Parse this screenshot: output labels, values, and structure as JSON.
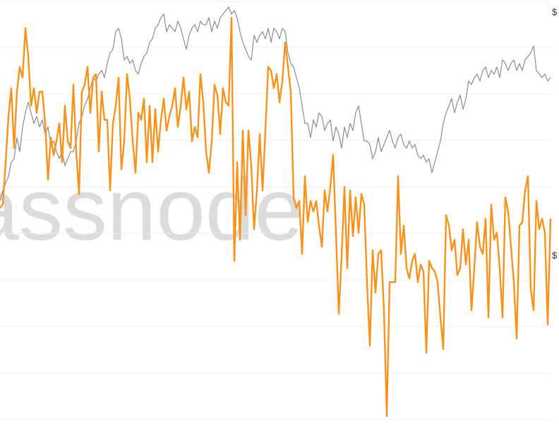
{
  "chart_data": {
    "type": "line",
    "watermark": "glassnode",
    "grid": true,
    "xlim": [
      0,
      780
    ],
    "ylim": [
      0,
      593
    ],
    "yticks": [
      0,
      66,
      132,
      198,
      264,
      330,
      396,
      462,
      528,
      593
    ],
    "y2lim": [
      0,
      593
    ],
    "y2ticks": [
      {
        "value": 577,
        "label": "$"
      },
      {
        "value": 232,
        "label": "$"
      }
    ],
    "x": [
      0,
      4,
      8,
      12,
      16,
      20,
      24,
      28,
      32,
      36,
      40,
      44,
      48,
      52,
      56,
      60,
      64,
      68,
      72,
      76,
      80,
      84,
      88,
      92,
      96,
      100,
      104,
      108,
      112,
      116,
      120,
      124,
      128,
      132,
      136,
      140,
      144,
      148,
      152,
      156,
      160,
      164,
      168,
      172,
      176,
      180,
      184,
      188,
      192,
      196,
      200,
      204,
      208,
      212,
      216,
      220,
      224,
      228,
      232,
      236,
      240,
      244,
      248,
      252,
      256,
      260,
      264,
      268,
      272,
      276,
      280,
      284,
      288,
      292,
      296,
      300,
      304,
      308,
      312,
      316,
      320,
      324,
      328,
      332,
      336,
      340,
      344,
      348,
      352,
      356,
      360,
      364,
      368,
      372,
      376,
      380,
      384,
      388,
      392,
      396,
      400,
      404,
      408,
      412,
      416,
      420,
      424,
      428,
      432,
      436,
      440,
      444,
      448,
      452,
      456,
      460,
      464,
      468,
      472,
      476,
      480,
      484,
      488,
      492,
      496,
      500,
      504,
      508,
      512,
      516,
      520,
      524,
      528,
      532,
      536,
      540,
      544,
      548,
      552,
      556,
      560,
      564,
      568,
      572,
      576,
      580,
      584,
      588,
      592,
      596,
      600,
      604,
      608,
      612,
      616,
      620,
      624,
      628,
      632,
      636,
      640,
      644,
      648,
      652,
      656,
      660,
      664,
      668,
      672,
      676,
      680,
      684,
      688,
      692,
      696,
      700,
      704,
      708,
      712,
      716,
      720,
      724,
      728,
      732,
      736,
      740,
      744,
      748,
      752,
      756,
      760,
      764,
      768,
      772,
      776,
      780
    ],
    "series": [
      {
        "color": "#8c8c8c",
        "axis": "y2",
        "values": [
          310,
          325,
          335,
          345,
          365,
          370,
          400,
          380,
          415,
          435,
          450,
          435,
          420,
          430,
          415,
          425,
          405,
          415,
          390,
          395,
          380,
          370,
          380,
          360,
          370,
          380,
          380,
          395,
          420,
          430,
          445,
          455,
          470,
          485,
          480,
          490,
          495,
          485,
          505,
          520,
          525,
          550,
          555,
          540,
          510,
          515,
          505,
          510,
          495,
          490,
          505,
          515,
          520,
          535,
          540,
          555,
          560,
          570,
          575,
          550,
          560,
          555,
          550,
          565,
          555,
          540,
          525,
          545,
          555,
          560,
          550,
          565,
          560,
          560,
          570,
          550,
          565,
          555,
          570,
          575,
          580,
          585,
          575,
          580,
          570,
          550,
          535,
          525,
          515,
          510,
          545,
          535,
          545,
          550,
          540,
          555,
          535,
          555,
          550,
          540,
          555,
          550,
          520,
          505,
          500,
          485,
          470,
          445,
          420,
          420,
          400,
          425,
          415,
          435,
          430,
          410,
          420,
          425,
          395,
          415,
          405,
          385,
          415,
          400,
          420,
          410,
          435,
          445,
          420,
          395,
          395,
          390,
          370,
          380,
          400,
          380,
          390,
          400,
          410,
          395,
          385,
          400,
          405,
          390,
          385,
          395,
          385,
          390,
          375,
          370,
          375,
          365,
          370,
          350,
          365,
          380,
          395,
          420,
          435,
          445,
          455,
          435,
          450,
          460,
          440,
          455,
          480,
          475,
          485,
          490,
          480,
          495,
          500,
          485,
          495,
          490,
          500,
          485,
          510,
          505,
          495,
          505,
          510,
          495,
          505,
          495,
          510,
          515,
          520,
          530,
          495,
          490,
          485,
          490,
          480,
          485
        ]
      },
      {
        "color": "#f7931a",
        "values": [
          300,
          305,
          365,
          430,
          470,
          385,
          465,
          500,
          485,
          555,
          515,
          445,
          470,
          435,
          465,
          465,
          420,
          340,
          400,
          375,
          395,
          420,
          365,
          445,
          395,
          385,
          475,
          380,
          320,
          465,
          475,
          500,
          435,
          485,
          490,
          380,
          465,
          425,
          425,
          325,
          420,
          445,
          485,
          355,
          395,
          490,
          455,
          395,
          350,
          435,
          425,
          455,
          365,
          445,
          365,
          440,
          380,
          425,
          455,
          410,
          430,
          445,
          470,
          415,
          445,
          485,
          440,
          465,
          395,
          415,
          400,
          490,
          450,
          380,
          350,
          395,
          475,
          460,
          405,
          470,
          450,
          445,
          570,
          225,
          365,
          255,
          410,
          290,
          410,
          360,
          270,
          325,
          405,
          325,
          410,
          500,
          495,
          470,
          490,
          450,
          480,
          535,
          500,
          465,
          315,
          300,
          310,
          235,
          345,
          280,
          310,
          295,
          310,
          275,
          245,
          325,
          295,
          330,
          375,
          265,
          150,
          230,
          330,
          215,
          325,
          260,
          315,
          265,
          320,
          305,
          195,
          105,
          240,
          180,
          235,
          240,
          155,
          5,
          195,
          195,
          195,
          345,
          235,
          275,
          215,
          200,
          225,
          235,
          195,
          220,
          210,
          95,
          225,
          215,
          210,
          195,
          145,
          100,
          290,
          275,
          240,
          255,
          205,
          215,
          270,
          220,
          255,
          155,
          215,
          280,
          245,
          235,
          285,
          145,
          305,
          255,
          265,
          215,
          145,
          315,
          295,
          245,
          195,
          115,
          275,
          280,
          325,
          345,
          185,
          155,
          310,
          270,
          285,
          265,
          135,
          285
        ]
      }
    ]
  }
}
